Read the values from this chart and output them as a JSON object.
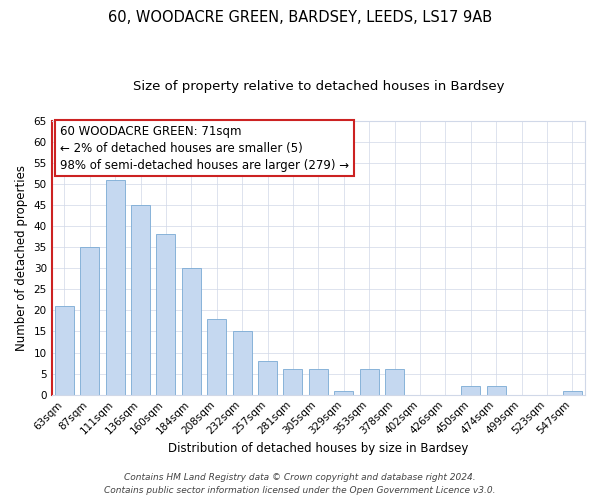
{
  "title": "60, WOODACRE GREEN, BARDSEY, LEEDS, LS17 9AB",
  "subtitle": "Size of property relative to detached houses in Bardsey",
  "xlabel": "Distribution of detached houses by size in Bardsey",
  "ylabel": "Number of detached properties",
  "bar_labels": [
    "63sqm",
    "87sqm",
    "111sqm",
    "136sqm",
    "160sqm",
    "184sqm",
    "208sqm",
    "232sqm",
    "257sqm",
    "281sqm",
    "305sqm",
    "329sqm",
    "353sqm",
    "378sqm",
    "402sqm",
    "426sqm",
    "450sqm",
    "474sqm",
    "499sqm",
    "523sqm",
    "547sqm"
  ],
  "bar_values": [
    21,
    35,
    51,
    45,
    38,
    30,
    18,
    15,
    8,
    6,
    6,
    1,
    6,
    6,
    0,
    0,
    2,
    2,
    0,
    0,
    1
  ],
  "bar_color": "#c5d8f0",
  "bar_edge_color": "#7aaad4",
  "annotation_border_color": "#cc2222",
  "annotation_line1": "60 WOODACRE GREEN: 71sqm",
  "annotation_line2": "← 2% of detached houses are smaller (5)",
  "annotation_line3": "98% of semi-detached houses are larger (279) →",
  "ylim": [
    0,
    65
  ],
  "yticks": [
    0,
    5,
    10,
    15,
    20,
    25,
    30,
    35,
    40,
    45,
    50,
    55,
    60,
    65
  ],
  "footer_line1": "Contains HM Land Registry data © Crown copyright and database right 2024.",
  "footer_line2": "Contains public sector information licensed under the Open Government Licence v3.0.",
  "bg_color": "#ffffff",
  "grid_color": "#d0d8e8",
  "title_fontsize": 10.5,
  "subtitle_fontsize": 9.5,
  "axis_label_fontsize": 8.5,
  "tick_fontsize": 7.5,
  "annotation_fontsize": 8.5,
  "footer_fontsize": 6.5,
  "red_line_color": "#cc2222"
}
